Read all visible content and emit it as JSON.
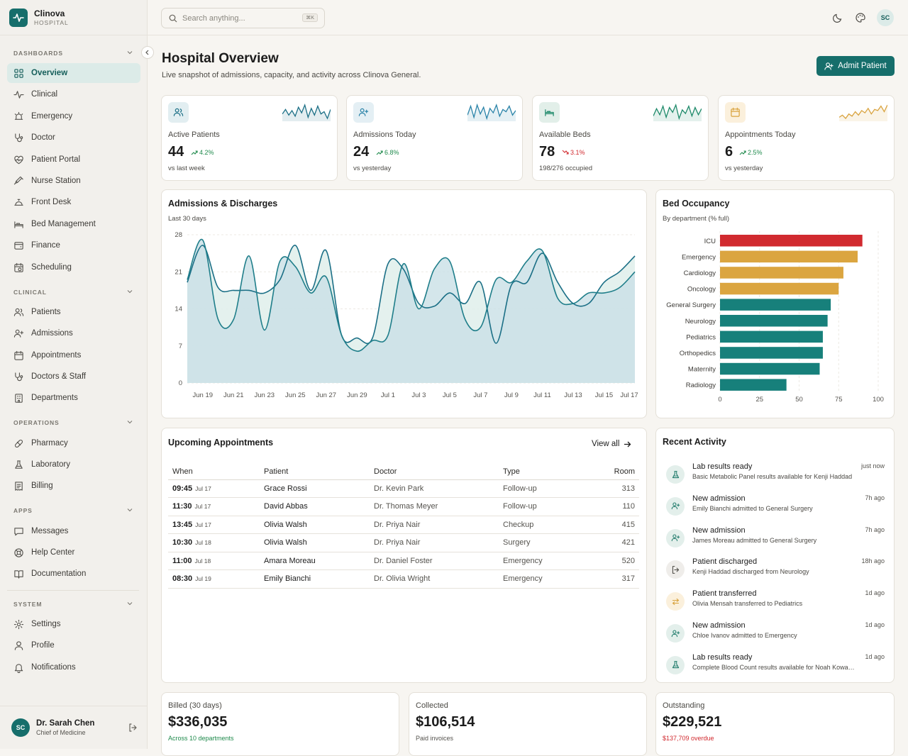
{
  "brand": {
    "name": "Clinova",
    "sub": "HOSPITAL"
  },
  "sidebar": {
    "sections": [
      {
        "label": "DASHBOARDS"
      },
      {
        "label": "CLINICAL"
      },
      {
        "label": "OPERATIONS"
      },
      {
        "label": "APPS"
      },
      {
        "label": "SYSTEM"
      }
    ],
    "items": [
      {
        "label": "Overview",
        "icon": "grid-icon"
      },
      {
        "label": "Clinical",
        "icon": "pulse-icon"
      },
      {
        "label": "Emergency",
        "icon": "siren-icon"
      },
      {
        "label": "Doctor",
        "icon": "stethoscope-icon"
      },
      {
        "label": "Patient Portal",
        "icon": "heart-pulse-icon"
      },
      {
        "label": "Nurse Station",
        "icon": "syringe-icon"
      },
      {
        "label": "Front Desk",
        "icon": "bell-desk-icon"
      },
      {
        "label": "Bed Management",
        "icon": "bed-icon"
      },
      {
        "label": "Finance",
        "icon": "wallet-icon"
      },
      {
        "label": "Scheduling",
        "icon": "calendar-clock-icon"
      },
      {
        "label": "Patients",
        "icon": "users-icon"
      },
      {
        "label": "Admissions",
        "icon": "user-plus-icon"
      },
      {
        "label": "Appointments",
        "icon": "calendar-icon"
      },
      {
        "label": "Doctors & Staff",
        "icon": "stethoscope-icon"
      },
      {
        "label": "Departments",
        "icon": "building-icon"
      },
      {
        "label": "Pharmacy",
        "icon": "pill-icon"
      },
      {
        "label": "Laboratory",
        "icon": "flask-icon"
      },
      {
        "label": "Billing",
        "icon": "receipt-icon"
      },
      {
        "label": "Messages",
        "icon": "message-icon"
      },
      {
        "label": "Help Center",
        "icon": "lifebuoy-icon"
      },
      {
        "label": "Documentation",
        "icon": "book-icon"
      },
      {
        "label": "Settings",
        "icon": "gear-icon"
      },
      {
        "label": "Profile",
        "icon": "user-icon"
      },
      {
        "label": "Notifications",
        "icon": "bell-icon"
      }
    ],
    "user": {
      "initials": "SC",
      "name": "Dr. Sarah Chen",
      "role": "Chief of Medicine"
    }
  },
  "topbar": {
    "search_placeholder": "Search anything...",
    "shortcut": "⌘K",
    "avatar": "SC"
  },
  "header": {
    "title": "Hospital Overview",
    "subtitle": "Live snapshot of admissions, capacity, and activity across Clinova General.",
    "admit_label": "Admit Patient"
  },
  "kpis": [
    {
      "label": "Active Patients",
      "value": "44",
      "trend": "4.2%",
      "trend_dir": "up",
      "foot": "vs last week",
      "icon": "users-icon",
      "color": "#1b6f86",
      "spark": [
        10,
        14,
        9,
        13,
        8,
        16,
        11,
        18,
        7,
        15,
        9,
        17,
        10,
        12,
        6,
        14
      ]
    },
    {
      "label": "Admissions Today",
      "value": "24",
      "trend": "6.8%",
      "trend_dir": "up",
      "foot": "vs yesterday",
      "icon": "user-plus-icon",
      "color": "#2a83a8",
      "spark": [
        8,
        16,
        6,
        17,
        9,
        15,
        5,
        14,
        10,
        17,
        7,
        13,
        11,
        16,
        8,
        12
      ]
    },
    {
      "label": "Available Beds",
      "value": "78",
      "trend": "3.1%",
      "trend_dir": "down",
      "foot": "198/276 occupied",
      "icon": "bed-icon",
      "color": "#1e8a6a",
      "spark": [
        9,
        15,
        10,
        17,
        8,
        16,
        12,
        18,
        7,
        14,
        11,
        17,
        9,
        16,
        10,
        15
      ]
    },
    {
      "label": "Appointments Today",
      "value": "6",
      "trend": "2.5%",
      "trend_dir": "up",
      "foot": "vs yesterday",
      "icon": "calendar-icon",
      "color": "#d9a33e",
      "spark": [
        6,
        8,
        5,
        9,
        7,
        11,
        8,
        12,
        10,
        14,
        9,
        13,
        12,
        16,
        11,
        17
      ]
    }
  ],
  "admissions": {
    "title": "Admissions & Discharges",
    "subtitle": "Last 30 days",
    "y_ticks": [
      "0",
      "7",
      "14",
      "21",
      "28"
    ],
    "x_ticks": [
      "Jun 19",
      "Jun 21",
      "Jun 23",
      "Jun 25",
      "Jun 27",
      "Jun 29",
      "Jul 1",
      "Jul 3",
      "Jul 5",
      "Jul 7",
      "Jul 9",
      "Jul 11",
      "Jul 13",
      "Jul 15",
      "Jul 17"
    ]
  },
  "occupancy": {
    "title": "Bed Occupancy",
    "subtitle": "By department (% full)",
    "x_ticks": [
      "0",
      "25",
      "50",
      "75",
      "100"
    ]
  },
  "chart_data": [
    {
      "type": "area",
      "title": "Admissions & Discharges",
      "xlabel": "",
      "ylabel": "",
      "ylim": [
        0,
        28
      ],
      "x": [
        "Jun 18",
        "Jun 19",
        "Jun 20",
        "Jun 21",
        "Jun 22",
        "Jun 23",
        "Jun 24",
        "Jun 25",
        "Jun 26",
        "Jun 27",
        "Jun 28",
        "Jun 29",
        "Jun 30",
        "Jul 1",
        "Jul 2",
        "Jul 3",
        "Jul 4",
        "Jul 5",
        "Jul 6",
        "Jul 7",
        "Jul 8",
        "Jul 9",
        "Jul 10",
        "Jul 11",
        "Jul 12",
        "Jul 13",
        "Jul 14",
        "Jul 15",
        "Jul 16",
        "Jul 17"
      ],
      "series": [
        {
          "values": [
            19,
            26,
            18,
            17.5,
            17.5,
            17,
            19.5,
            26,
            17.5,
            25,
            9,
            8.5,
            8.5,
            22.5,
            21.5,
            15,
            14.5,
            17,
            15,
            19,
            7.5,
            18.5,
            19,
            24.5,
            19,
            15,
            15,
            19,
            21,
            24
          ],
          "color": "#1b6f86"
        },
        {
          "values": [
            19.5,
            27,
            12,
            12,
            24,
            10,
            23,
            22,
            17,
            20,
            9,
            6,
            8,
            9,
            22.5,
            14,
            21.5,
            23,
            12,
            10.5,
            19.5,
            19,
            23,
            25,
            16,
            15,
            17,
            17,
            18,
            21
          ],
          "color": "#1f7e8a"
        }
      ]
    },
    {
      "type": "bar",
      "title": "Bed Occupancy",
      "orientation": "horizontal",
      "categories": [
        "ICU",
        "Emergency",
        "Cardiology",
        "Oncology",
        "General Surgery",
        "Neurology",
        "Pediatrics",
        "Orthopedics",
        "Maternity",
        "Radiology"
      ],
      "values": [
        90,
        87,
        78,
        75,
        70,
        68,
        65,
        65,
        63,
        42
      ],
      "colors": [
        "#d12a2f",
        "#dba540",
        "#dba540",
        "#dba540",
        "#17807b",
        "#17807b",
        "#17807b",
        "#17807b",
        "#17807b",
        "#17807b"
      ],
      "xlim": [
        0,
        100
      ]
    }
  ],
  "appointments": {
    "title": "Upcoming Appointments",
    "view_all": "View all",
    "columns": [
      "When",
      "Patient",
      "Doctor",
      "Type",
      "Room"
    ],
    "rows": [
      {
        "time": "09:45",
        "date": "Jul 17",
        "patient": "Grace Rossi",
        "doctor": "Dr. Kevin Park",
        "type": "Follow-up",
        "room": "313"
      },
      {
        "time": "11:30",
        "date": "Jul 17",
        "patient": "David Abbas",
        "doctor": "Dr. Thomas Meyer",
        "type": "Follow-up",
        "room": "110"
      },
      {
        "time": "13:45",
        "date": "Jul 17",
        "patient": "Olivia Walsh",
        "doctor": "Dr. Priya Nair",
        "type": "Checkup",
        "room": "415"
      },
      {
        "time": "10:30",
        "date": "Jul 18",
        "patient": "Olivia Walsh",
        "doctor": "Dr. Priya Nair",
        "type": "Surgery",
        "room": "421"
      },
      {
        "time": "11:00",
        "date": "Jul 18",
        "patient": "Amara Moreau",
        "doctor": "Dr. Daniel Foster",
        "type": "Emergency",
        "room": "520"
      },
      {
        "time": "08:30",
        "date": "Jul 19",
        "patient": "Emily Bianchi",
        "doctor": "Dr. Olivia Wright",
        "type": "Emergency",
        "room": "317"
      }
    ]
  },
  "activity": {
    "title": "Recent Activity",
    "items": [
      {
        "title": "Lab results ready",
        "desc": "Basic Metabolic Panel results available for Kenji Haddad",
        "time": "just now",
        "icon": "flask-icon",
        "bg": "#e3efeb",
        "fg": "#1e7a6a"
      },
      {
        "title": "New admission",
        "desc": "Emily Bianchi admitted to General Surgery",
        "time": "7h ago",
        "icon": "user-plus-icon",
        "bg": "#e3efeb",
        "fg": "#1e7a6a"
      },
      {
        "title": "New admission",
        "desc": "James Moreau admitted to General Surgery",
        "time": "7h ago",
        "icon": "user-plus-icon",
        "bg": "#e3efeb",
        "fg": "#1e7a6a"
      },
      {
        "title": "Patient discharged",
        "desc": "Kenji Haddad discharged from Neurology",
        "time": "18h ago",
        "icon": "logout-icon",
        "bg": "#efedea",
        "fg": "#4b4944"
      },
      {
        "title": "Patient transferred",
        "desc": "Olivia Mensah transferred to Pediatrics",
        "time": "1d ago",
        "icon": "transfer-icon",
        "bg": "#fbf0dc",
        "fg": "#d9a33e"
      },
      {
        "title": "New admission",
        "desc": "Chloe Ivanov admitted to Emergency",
        "time": "1d ago",
        "icon": "user-plus-icon",
        "bg": "#e3efeb",
        "fg": "#1e7a6a"
      },
      {
        "title": "Lab results ready",
        "desc": "Complete Blood Count results available for Noah Kowalski",
        "time": "1d ago",
        "icon": "flask-icon",
        "bg": "#e3efeb",
        "fg": "#1e7a6a"
      }
    ]
  },
  "finance": [
    {
      "label": "Billed (30 days)",
      "value": "$336,035",
      "note": "Across 10 departments",
      "note_color": "#1f8a4c"
    },
    {
      "label": "Collected",
      "value": "$106,514",
      "note": "Paid invoices",
      "note_color": "#55534e"
    },
    {
      "label": "Outstanding",
      "value": "$229,521",
      "note": "$137,709 overdue",
      "note_color": "#d12a2f"
    }
  ],
  "colors": {
    "accent": "#166e6b",
    "up": "#1f8a4c",
    "down": "#d12a2f"
  }
}
